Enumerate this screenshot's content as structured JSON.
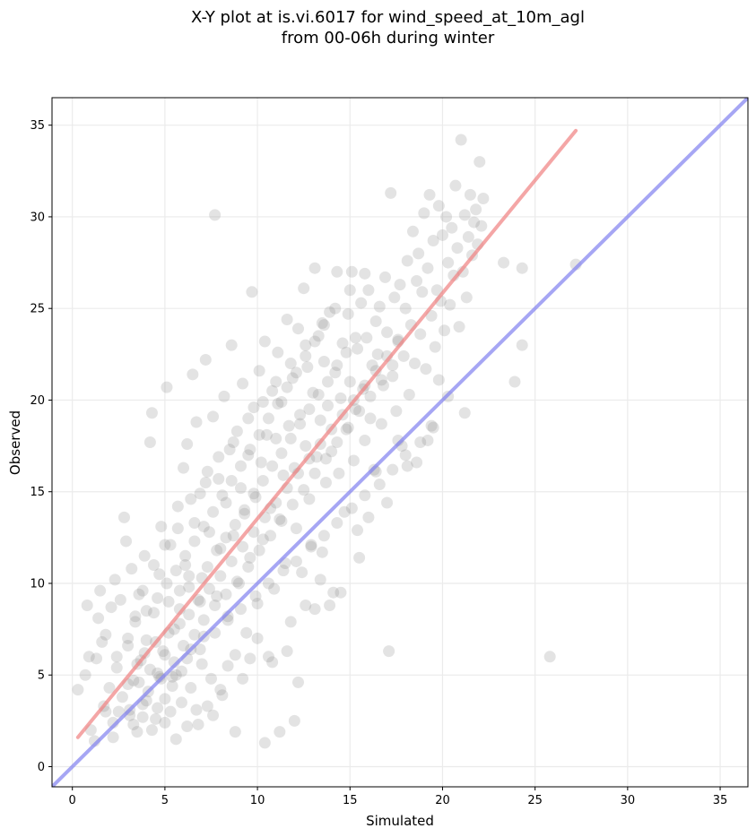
{
  "chart_data": {
    "type": "scatter",
    "title_line1": "X-Y plot at is.vi.6017 for wind_speed_at_10m_agl",
    "title_line2": "from 00-06h during winter",
    "xlabel": "Simulated",
    "ylabel": "Observed",
    "xlim": [
      -1.1,
      36.5
    ],
    "ylim": [
      -1.1,
      36.5
    ],
    "xticks": [
      0,
      5,
      10,
      15,
      20,
      25,
      30,
      35
    ],
    "yticks": [
      0,
      5,
      10,
      15,
      20,
      25,
      30,
      35
    ],
    "x_tick_labels": [
      "0",
      "5",
      "10",
      "15",
      "20",
      "25",
      "30",
      "35"
    ],
    "y_tick_labels": [
      "0",
      "5",
      "10",
      "15",
      "20",
      "25",
      "30",
      "35"
    ],
    "grid": true,
    "point_color": "#808080",
    "regression_line": {
      "color": "#f08080",
      "x": [
        0.3,
        27.2
      ],
      "y": [
        1.6,
        34.7
      ]
    },
    "identity_line": {
      "color": "#8080f0",
      "x": [
        -1.1,
        36.5
      ],
      "y": [
        -1.1,
        36.5
      ]
    },
    "points": [
      [
        0.3,
        4.2
      ],
      [
        0.7,
        5.0
      ],
      [
        0.8,
        8.8
      ],
      [
        0.9,
        6.0
      ],
      [
        1.0,
        2.0
      ],
      [
        1.2,
        1.4
      ],
      [
        1.3,
        5.9
      ],
      [
        1.4,
        8.1
      ],
      [
        1.5,
        9.6
      ],
      [
        1.6,
        6.8
      ],
      [
        1.7,
        3.3
      ],
      [
        1.8,
        7.2
      ],
      [
        2.0,
        4.3
      ],
      [
        2.1,
        8.7
      ],
      [
        2.2,
        1.6
      ],
      [
        2.3,
        10.2
      ],
      [
        2.4,
        5.4
      ],
      [
        2.5,
        3.0
      ],
      [
        2.6,
        9.1
      ],
      [
        2.8,
        13.6
      ],
      [
        2.9,
        12.3
      ],
      [
        3.0,
        6.6
      ],
      [
        3.1,
        2.8
      ],
      [
        3.2,
        10.8
      ],
      [
        3.3,
        4.7
      ],
      [
        3.4,
        7.9
      ],
      [
        3.5,
        1.9
      ],
      [
        3.6,
        9.4
      ],
      [
        3.7,
        5.8
      ],
      [
        3.8,
        3.4
      ],
      [
        3.9,
        11.5
      ],
      [
        4.0,
        6.9
      ],
      [
        4.1,
        4.1
      ],
      [
        4.2,
        17.7
      ],
      [
        4.3,
        19.3
      ],
      [
        4.4,
        8.4
      ],
      [
        4.5,
        2.6
      ],
      [
        4.6,
        5.1
      ],
      [
        4.7,
        10.5
      ],
      [
        4.8,
        13.1
      ],
      [
        4.9,
        6.3
      ],
      [
        5.0,
        3.7
      ],
      [
        5.1,
        20.7
      ],
      [
        5.2,
        9.0
      ],
      [
        5.3,
        12.1
      ],
      [
        5.4,
        4.4
      ],
      [
        5.5,
        7.5
      ],
      [
        5.6,
        1.5
      ],
      [
        5.7,
        14.2
      ],
      [
        5.8,
        8.6
      ],
      [
        5.9,
        5.2
      ],
      [
        6.0,
        16.3
      ],
      [
        6.1,
        11.0
      ],
      [
        6.2,
        17.6
      ],
      [
        6.3,
        9.8
      ],
      [
        6.4,
        6.4
      ],
      [
        6.5,
        21.4
      ],
      [
        6.6,
        13.3
      ],
      [
        6.7,
        18.8
      ],
      [
        6.8,
        2.3
      ],
      [
        6.9,
        14.9
      ],
      [
        7.0,
        10.3
      ],
      [
        7.1,
        7.1
      ],
      [
        7.2,
        22.2
      ],
      [
        7.3,
        16.1
      ],
      [
        7.4,
        12.8
      ],
      [
        7.5,
        4.8
      ],
      [
        7.6,
        19.1
      ],
      [
        7.7,
        30.1
      ],
      [
        7.8,
        9.3
      ],
      [
        7.9,
        15.7
      ],
      [
        8.0,
        11.9
      ],
      [
        8.1,
        3.9
      ],
      [
        8.2,
        20.2
      ],
      [
        8.3,
        14.4
      ],
      [
        8.4,
        8.2
      ],
      [
        8.5,
        17.3
      ],
      [
        8.6,
        23.0
      ],
      [
        8.7,
        12.6
      ],
      [
        8.8,
        6.1
      ],
      [
        8.9,
        18.3
      ],
      [
        9.0,
        10.0
      ],
      [
        9.1,
        15.2
      ],
      [
        9.2,
        20.9
      ],
      [
        9.3,
        13.8
      ],
      [
        9.4,
        7.3
      ],
      [
        9.5,
        17.0
      ],
      [
        9.6,
        11.4
      ],
      [
        9.7,
        25.9
      ],
      [
        9.8,
        19.6
      ],
      [
        9.9,
        14.7
      ],
      [
        10.0,
        8.9
      ],
      [
        10.1,
        21.6
      ],
      [
        10.2,
        16.6
      ],
      [
        10.3,
        12.4
      ],
      [
        10.4,
        23.2
      ],
      [
        10.5,
        18.1
      ],
      [
        10.6,
        6.0
      ],
      [
        10.7,
        14.1
      ],
      [
        10.8,
        20.5
      ],
      [
        10.9,
        9.7
      ],
      [
        11.0,
        17.9
      ],
      [
        11.1,
        22.6
      ],
      [
        11.2,
        13.5
      ],
      [
        11.3,
        19.9
      ],
      [
        11.4,
        15.9
      ],
      [
        11.5,
        11.1
      ],
      [
        11.6,
        24.4
      ],
      [
        11.7,
        18.6
      ],
      [
        11.8,
        7.9
      ],
      [
        11.9,
        21.2
      ],
      [
        12.0,
        16.3
      ],
      [
        12.1,
        13.0
      ],
      [
        12.2,
        23.9
      ],
      [
        12.3,
        19.2
      ],
      [
        12.4,
        10.6
      ],
      [
        12.5,
        26.1
      ],
      [
        12.6,
        17.5
      ],
      [
        12.7,
        21.8
      ],
      [
        12.8,
        14.6
      ],
      [
        12.9,
        12.1
      ],
      [
        13.0,
        20.4
      ],
      [
        13.1,
        27.2
      ],
      [
        13.2,
        16.9
      ],
      [
        13.3,
        23.5
      ],
      [
        13.4,
        18.9
      ],
      [
        13.5,
        11.7
      ],
      [
        13.6,
        22.1
      ],
      [
        13.7,
        15.5
      ],
      [
        13.8,
        19.7
      ],
      [
        13.9,
        24.8
      ],
      [
        14.0,
        17.2
      ],
      [
        14.1,
        9.5
      ],
      [
        14.2,
        21.5
      ],
      [
        14.3,
        27.0
      ],
      [
        14.4,
        16.0
      ],
      [
        14.5,
        20.1
      ],
      [
        14.6,
        23.1
      ],
      [
        14.7,
        13.9
      ],
      [
        14.8,
        18.4
      ],
      [
        14.9,
        24.7
      ],
      [
        15.0,
        21.0
      ],
      [
        15.1,
        27.0
      ],
      [
        15.2,
        16.7
      ],
      [
        15.3,
        19.5
      ],
      [
        15.4,
        22.8
      ],
      [
        15.5,
        11.4
      ],
      [
        15.6,
        25.3
      ],
      [
        15.7,
        20.6
      ],
      [
        15.8,
        17.8
      ],
      [
        15.9,
        23.4
      ],
      [
        16.0,
        26.0
      ],
      [
        16.1,
        19.0
      ],
      [
        16.2,
        21.9
      ],
      [
        16.3,
        16.2
      ],
      [
        16.4,
        24.3
      ],
      [
        16.5,
        22.5
      ],
      [
        16.6,
        25.1
      ],
      [
        16.7,
        18.7
      ],
      [
        16.8,
        20.8
      ],
      [
        16.9,
        26.7
      ],
      [
        17.0,
        23.7
      ],
      [
        17.1,
        6.3
      ],
      [
        17.2,
        31.3
      ],
      [
        17.3,
        21.3
      ],
      [
        17.4,
        25.6
      ],
      [
        17.5,
        19.4
      ],
      [
        17.6,
        23.3
      ],
      [
        17.7,
        26.3
      ],
      [
        17.8,
        17.5
      ],
      [
        17.9,
        22.4
      ],
      [
        18.0,
        25.0
      ],
      [
        18.1,
        27.6
      ],
      [
        18.2,
        20.3
      ],
      [
        18.3,
        24.1
      ],
      [
        18.4,
        29.2
      ],
      [
        18.5,
        22.0
      ],
      [
        18.6,
        26.5
      ],
      [
        18.7,
        28.0
      ],
      [
        18.8,
        23.6
      ],
      [
        18.9,
        25.9
      ],
      [
        19.0,
        30.2
      ],
      [
        19.1,
        21.7
      ],
      [
        19.2,
        27.2
      ],
      [
        19.3,
        31.2
      ],
      [
        19.4,
        24.6
      ],
      [
        19.5,
        28.7
      ],
      [
        19.6,
        22.9
      ],
      [
        19.7,
        26.0
      ],
      [
        19.8,
        30.6
      ],
      [
        19.9,
        25.4
      ],
      [
        20.0,
        29.0
      ],
      [
        20.1,
        23.8
      ],
      [
        20.2,
        30.0
      ],
      [
        20.3,
        27.5
      ],
      [
        20.4,
        25.2
      ],
      [
        20.5,
        29.4
      ],
      [
        20.6,
        26.8
      ],
      [
        20.7,
        31.7
      ],
      [
        20.8,
        28.3
      ],
      [
        20.9,
        24.0
      ],
      [
        21.0,
        34.2
      ],
      [
        21.1,
        27.0
      ],
      [
        21.2,
        30.1
      ],
      [
        21.3,
        25.6
      ],
      [
        21.4,
        28.9
      ],
      [
        21.5,
        31.2
      ],
      [
        21.6,
        27.9
      ],
      [
        21.7,
        29.7
      ],
      [
        21.8,
        30.4
      ],
      [
        21.9,
        28.5
      ],
      [
        22.0,
        33.0
      ],
      [
        22.1,
        29.5
      ],
      [
        22.2,
        31.0
      ],
      [
        23.3,
        27.5
      ],
      [
        23.9,
        21.0
      ],
      [
        24.3,
        27.2
      ],
      [
        24.3,
        23.0
      ],
      [
        25.8,
        6.0
      ],
      [
        27.2,
        27.4
      ],
      [
        1.8,
        3.0
      ],
      [
        2.2,
        2.4
      ],
      [
        2.7,
        3.8
      ],
      [
        3.1,
        3.1
      ],
      [
        3.3,
        2.3
      ],
      [
        3.6,
        4.6
      ],
      [
        3.8,
        2.7
      ],
      [
        4.0,
        3.6
      ],
      [
        4.3,
        2.0
      ],
      [
        4.6,
        3.2
      ],
      [
        4.8,
        4.8
      ],
      [
        5.0,
        2.4
      ],
      [
        5.3,
        3.0
      ],
      [
        5.6,
        5.0
      ],
      [
        5.9,
        3.5
      ],
      [
        6.2,
        2.2
      ],
      [
        6.4,
        4.3
      ],
      [
        6.7,
        3.1
      ],
      [
        7.0,
        5.6
      ],
      [
        7.3,
        3.3
      ],
      [
        7.6,
        2.8
      ],
      [
        8.0,
        4.2
      ],
      [
        8.4,
        5.5
      ],
      [
        8.8,
        1.9
      ],
      [
        9.2,
        4.8
      ],
      [
        9.6,
        5.9
      ],
      [
        10.0,
        7.0
      ],
      [
        10.4,
        1.3
      ],
      [
        10.8,
        5.7
      ],
      [
        11.2,
        1.9
      ],
      [
        11.6,
        6.3
      ],
      [
        12.0,
        2.5
      ],
      [
        12.2,
        4.6
      ],
      [
        12.6,
        8.8
      ],
      [
        13.1,
        8.6
      ],
      [
        13.4,
        10.2
      ],
      [
        13.9,
        8.8
      ],
      [
        14.5,
        9.5
      ],
      [
        15.4,
        12.9
      ],
      [
        16.0,
        13.6
      ],
      [
        16.4,
        16.1
      ],
      [
        17.0,
        14.4
      ],
      [
        17.6,
        17.8
      ],
      [
        18.1,
        16.4
      ],
      [
        18.6,
        16.6
      ],
      [
        19.2,
        17.8
      ],
      [
        19.4,
        18.6
      ],
      [
        19.8,
        21.1
      ],
      [
        20.3,
        20.2
      ],
      [
        21.2,
        19.3
      ],
      [
        3.0,
        4.5
      ],
      [
        3.5,
        5.6
      ],
      [
        3.9,
        6.2
      ],
      [
        4.2,
        5.3
      ],
      [
        4.5,
        6.8
      ],
      [
        4.7,
        4.9
      ],
      [
        5.0,
        6.1
      ],
      [
        5.2,
        7.3
      ],
      [
        5.5,
        5.7
      ],
      [
        5.8,
        7.8
      ],
      [
        6.0,
        6.6
      ],
      [
        6.3,
        8.3
      ],
      [
        6.6,
        7.2
      ],
      [
        6.9,
        9.0
      ],
      [
        7.1,
        8.0
      ],
      [
        7.4,
        9.7
      ],
      [
        7.7,
        8.8
      ],
      [
        8.0,
        10.4
      ],
      [
        8.3,
        9.4
      ],
      [
        8.6,
        11.2
      ],
      [
        8.9,
        10.1
      ],
      [
        9.2,
        12.0
      ],
      [
        9.5,
        10.9
      ],
      [
        9.8,
        12.8
      ],
      [
        10.1,
        11.8
      ],
      [
        10.4,
        13.6
      ],
      [
        10.7,
        12.6
      ],
      [
        11.0,
        14.4
      ],
      [
        11.3,
        13.4
      ],
      [
        11.6,
        15.2
      ],
      [
        11.9,
        14.3
      ],
      [
        12.2,
        16.0
      ],
      [
        12.5,
        15.1
      ],
      [
        12.8,
        16.8
      ],
      [
        13.1,
        16.0
      ],
      [
        13.4,
        17.6
      ],
      [
        13.7,
        16.8
      ],
      [
        14.0,
        18.4
      ],
      [
        14.3,
        17.7
      ],
      [
        14.6,
        19.2
      ],
      [
        14.9,
        18.5
      ],
      [
        15.2,
        20.0
      ],
      [
        15.5,
        19.4
      ],
      [
        15.8,
        20.8
      ],
      [
        16.1,
        20.2
      ],
      [
        16.4,
        21.6
      ],
      [
        16.7,
        21.1
      ],
      [
        17.0,
        22.4
      ],
      [
        17.3,
        21.9
      ],
      [
        17.6,
        23.2
      ],
      [
        4.0,
        8.5
      ],
      [
        4.6,
        9.2
      ],
      [
        5.1,
        10.0
      ],
      [
        5.6,
        10.7
      ],
      [
        6.1,
        11.5
      ],
      [
        6.6,
        12.3
      ],
      [
        7.1,
        13.1
      ],
      [
        7.6,
        13.9
      ],
      [
        8.1,
        14.8
      ],
      [
        8.6,
        15.6
      ],
      [
        9.1,
        16.4
      ],
      [
        9.6,
        17.3
      ],
      [
        10.1,
        18.1
      ],
      [
        10.6,
        19.0
      ],
      [
        11.1,
        19.8
      ],
      [
        11.6,
        20.7
      ],
      [
        12.1,
        21.5
      ],
      [
        12.6,
        22.4
      ],
      [
        13.1,
        23.2
      ],
      [
        13.6,
        24.1
      ],
      [
        5.4,
        4.9
      ],
      [
        6.2,
        5.9
      ],
      [
        6.9,
        6.4
      ],
      [
        7.7,
        7.3
      ],
      [
        8.4,
        8.0
      ],
      [
        9.1,
        8.6
      ],
      [
        9.9,
        9.3
      ],
      [
        10.6,
        10.0
      ],
      [
        11.4,
        10.7
      ],
      [
        12.1,
        11.2
      ],
      [
        12.9,
        12.0
      ],
      [
        13.6,
        12.6
      ],
      [
        14.3,
        13.3
      ],
      [
        15.1,
        14.1
      ],
      [
        15.8,
        14.8
      ],
      [
        16.6,
        15.4
      ],
      [
        17.3,
        16.2
      ],
      [
        18.0,
        17.0
      ],
      [
        18.8,
        17.7
      ],
      [
        19.5,
        18.5
      ],
      [
        2.4,
        6.0
      ],
      [
        3.0,
        7.0
      ],
      [
        3.4,
        8.2
      ],
      [
        3.8,
        9.6
      ],
      [
        4.4,
        11.0
      ],
      [
        5.0,
        12.1
      ],
      [
        5.7,
        13.0
      ],
      [
        6.4,
        14.6
      ],
      [
        7.2,
        15.5
      ],
      [
        7.9,
        16.9
      ],
      [
        8.7,
        17.7
      ],
      [
        9.5,
        19.0
      ],
      [
        10.3,
        19.9
      ],
      [
        11.0,
        21.0
      ],
      [
        11.8,
        22.0
      ],
      [
        12.6,
        23.0
      ],
      [
        13.5,
        24.2
      ],
      [
        14.2,
        25.0
      ],
      [
        15.0,
        26.0
      ],
      [
        15.8,
        26.9
      ],
      [
        5.8,
        9.6
      ],
      [
        6.3,
        10.4
      ],
      [
        6.8,
        9.1
      ],
      [
        7.3,
        10.9
      ],
      [
        7.8,
        11.8
      ],
      [
        8.3,
        12.5
      ],
      [
        8.8,
        13.2
      ],
      [
        9.3,
        14.0
      ],
      [
        9.8,
        14.9
      ],
      [
        10.3,
        15.6
      ],
      [
        10.8,
        16.4
      ],
      [
        11.3,
        17.1
      ],
      [
        11.8,
        17.9
      ],
      [
        12.3,
        18.7
      ],
      [
        12.8,
        19.5
      ],
      [
        13.3,
        20.3
      ],
      [
        13.8,
        21.0
      ],
      [
        14.3,
        21.9
      ],
      [
        14.8,
        22.6
      ],
      [
        15.3,
        23.4
      ]
    ]
  }
}
